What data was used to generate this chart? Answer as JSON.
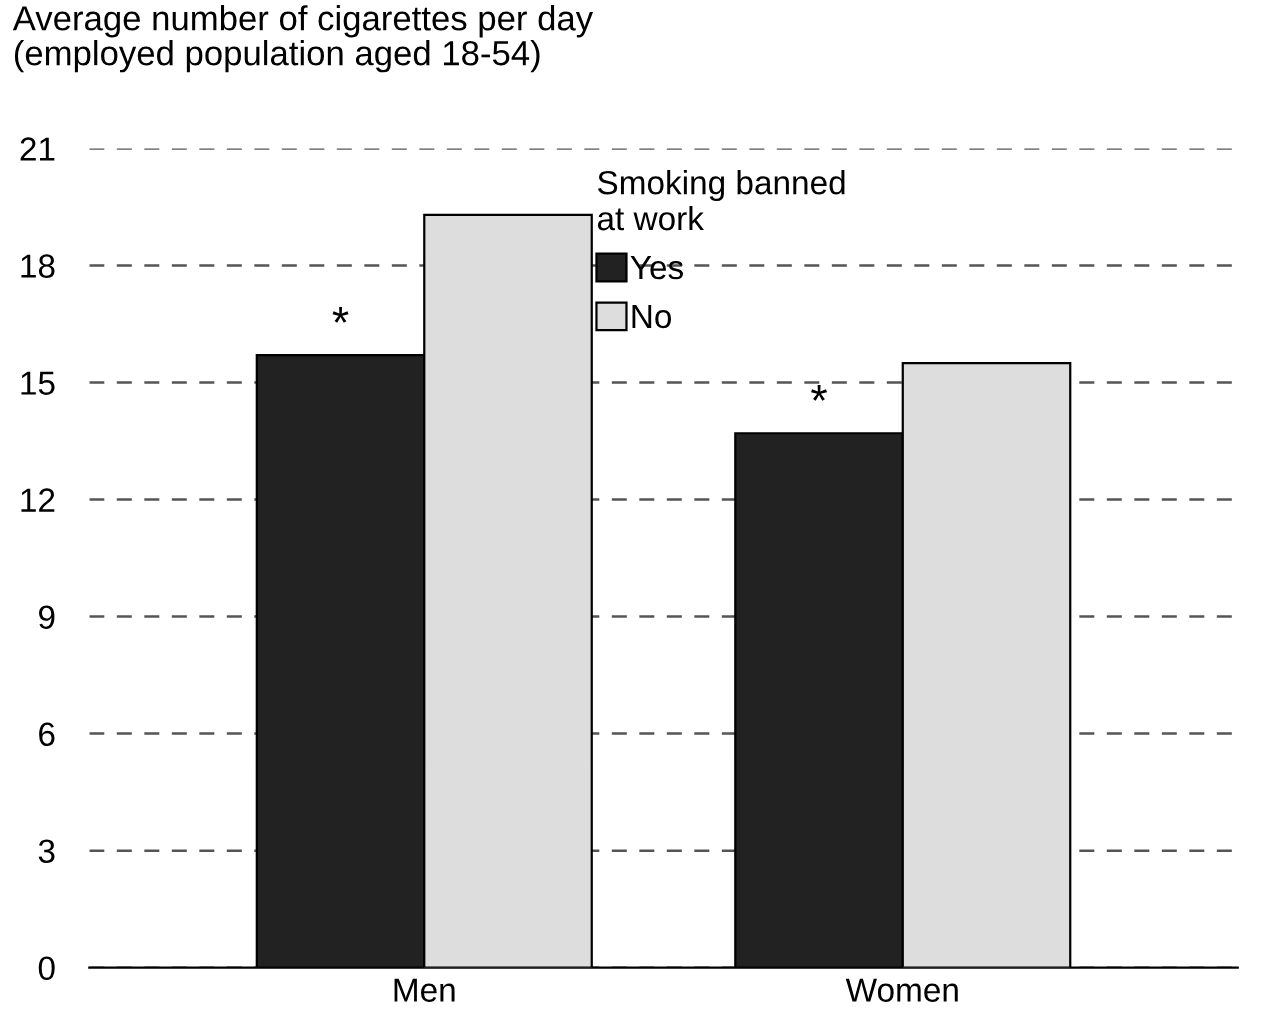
{
  "chart_data": {
    "type": "bar",
    "title": "Average number of cigarettes per day\n(employed population aged 18-54)",
    "categories": [
      "Men",
      "Women"
    ],
    "series": [
      {
        "name": "Yes",
        "color": "#222222",
        "values": [
          15.7,
          13.7
        ]
      },
      {
        "name": "No",
        "color": "#dddddd",
        "values": [
          19.3,
          15.5
        ]
      }
    ],
    "legend_title": "Smoking banned\nat work",
    "legend": "top",
    "ylim": [
      0,
      21
    ],
    "yticks": [
      0,
      3,
      6,
      9,
      12,
      15,
      18,
      21
    ],
    "grid": "y",
    "annotations": [
      {
        "text": "*",
        "x": "Men",
        "y": 15.7
      },
      {
        "text": "*",
        "x": "Women",
        "y": 13.7
      }
    ]
  }
}
